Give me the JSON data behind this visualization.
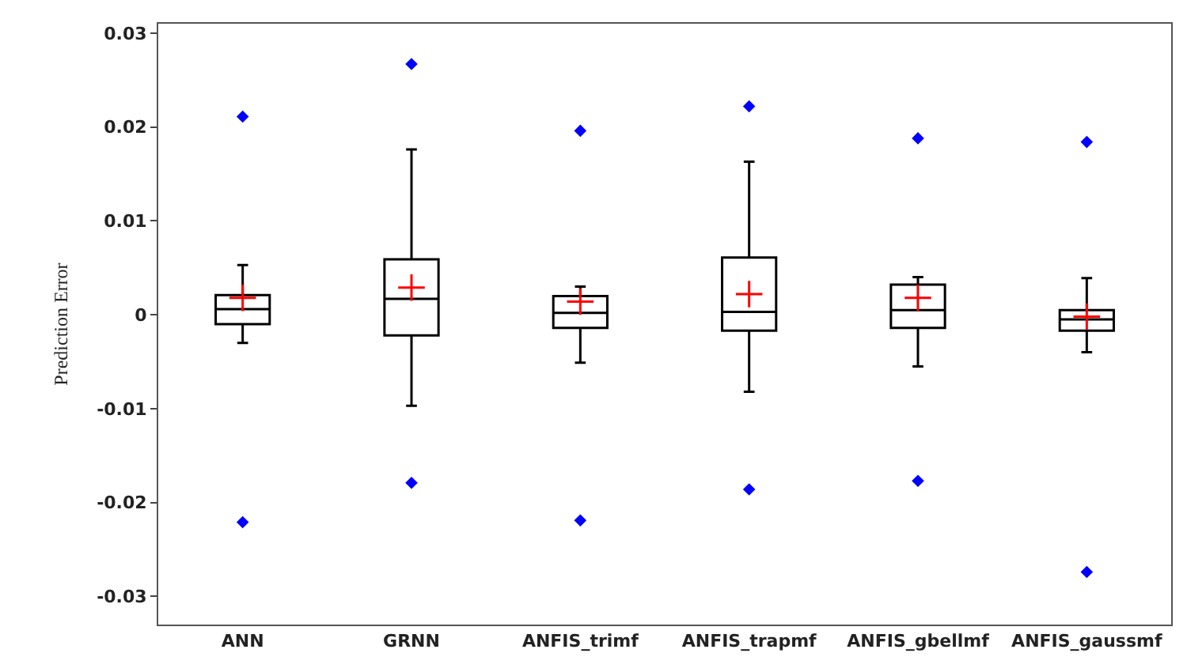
{
  "chart_data": {
    "type": "box",
    "ylabel": "Prediction Error",
    "categories": [
      "ANN",
      "GRNN",
      "ANFIS_trimf",
      "ANFIS_trapmf",
      "ANFIS_gbellmf",
      "ANFIS_gaussmf"
    ],
    "boxes": [
      {
        "low": -0.003,
        "q1": -0.001,
        "median": 0.0006,
        "q3": 0.0021,
        "high": 0.0053,
        "mean": 0.0018,
        "outliers": [
          0.0211,
          -0.0221
        ]
      },
      {
        "low": -0.0097,
        "q1": -0.0022,
        "median": 0.0017,
        "q3": 0.0059,
        "high": 0.0176,
        "mean": 0.0029,
        "outliers": [
          0.0267,
          -0.0179
        ]
      },
      {
        "low": -0.0051,
        "q1": -0.0014,
        "median": 0.0002,
        "q3": 0.002,
        "high": 0.003,
        "mean": 0.0014,
        "outliers": [
          0.0196,
          -0.0219
        ]
      },
      {
        "low": -0.0082,
        "q1": -0.0017,
        "median": 0.0003,
        "q3": 0.0061,
        "high": 0.0163,
        "mean": 0.0022,
        "outliers": [
          0.0222,
          -0.0186
        ]
      },
      {
        "low": -0.0055,
        "q1": -0.0014,
        "median": 0.0005,
        "q3": 0.0032,
        "high": 0.004,
        "mean": 0.0018,
        "outliers": [
          0.0188,
          -0.0177
        ]
      },
      {
        "low": -0.004,
        "q1": -0.0017,
        "median": -0.0005,
        "q3": 0.0005,
        "high": 0.0039,
        "mean": -0.0002,
        "outliers": [
          0.0184,
          -0.0274
        ]
      }
    ],
    "color": "#000000",
    "ylim": [
      -0.033,
      0.031
    ],
    "yticks": [
      {
        "value": -0.03,
        "label": "-0.03"
      },
      {
        "value": -0.02,
        "label": "-0.02"
      },
      {
        "value": -0.01,
        "label": "-0.01"
      },
      0,
      {
        "value": 0.01,
        "label": "0.01"
      },
      {
        "value": 0.02,
        "label": "0.02"
      },
      {
        "value": 0.03,
        "label": "0.03"
      }
    ]
  }
}
